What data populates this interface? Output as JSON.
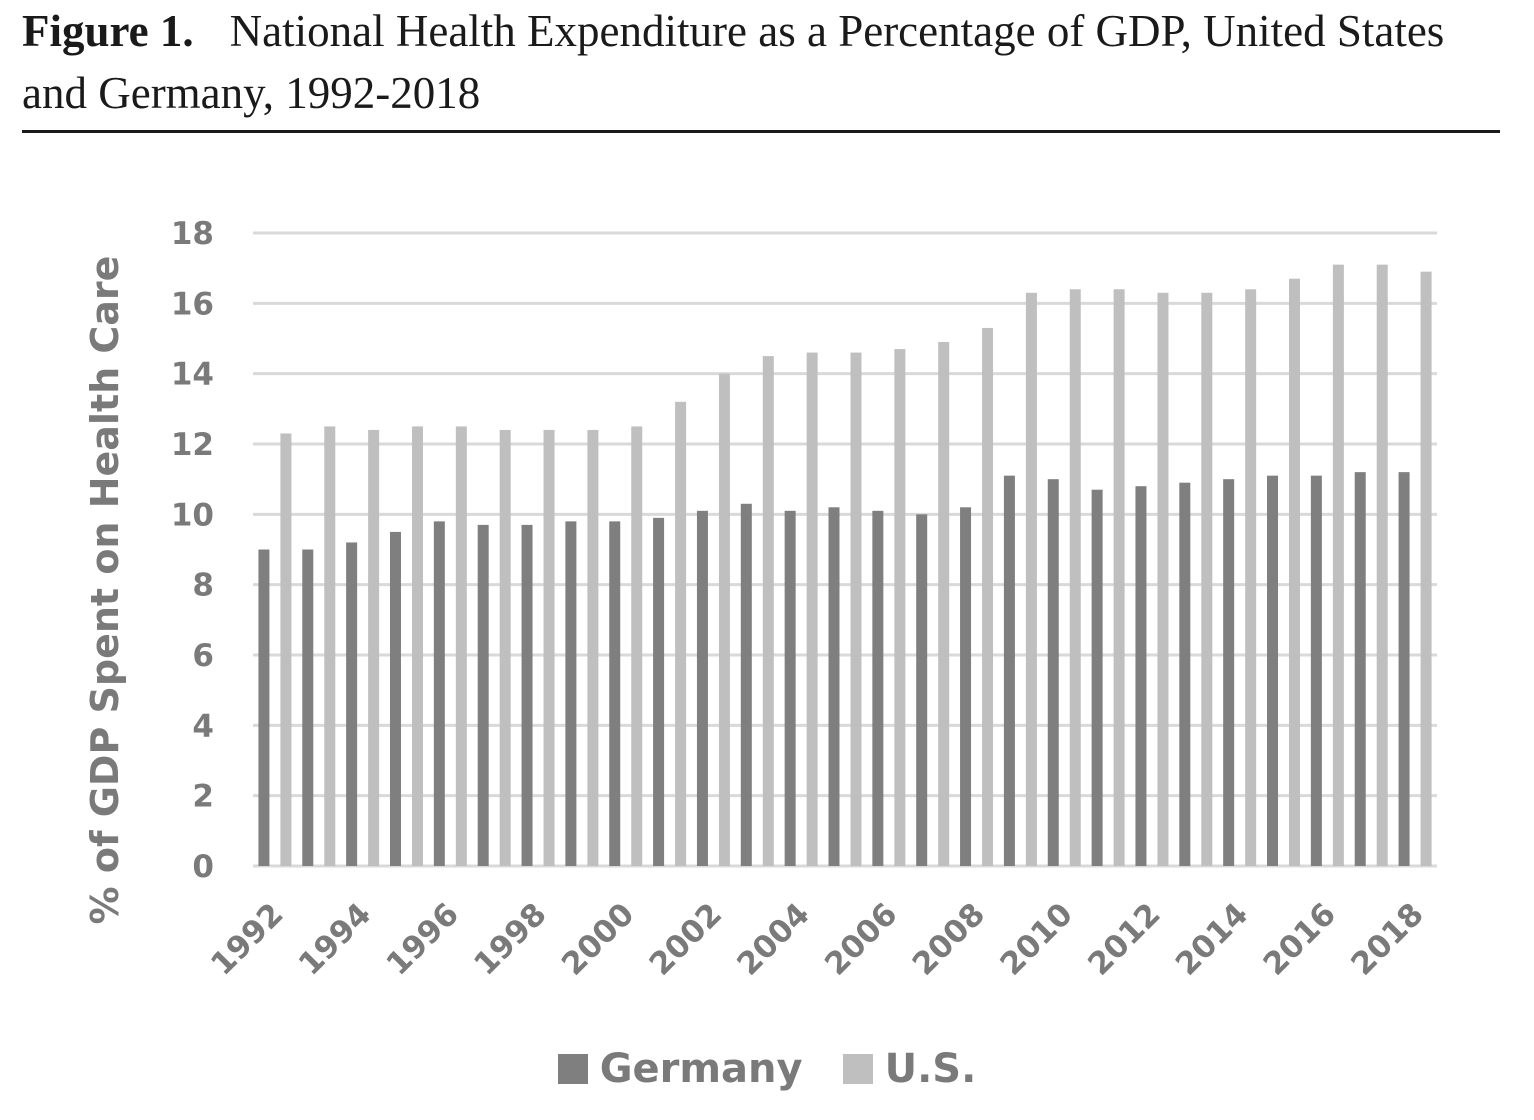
{
  "figure": {
    "label": "Figure 1.",
    "title": "National Health Expenditure as a Percentage of GDP, United States and Germany, 1992-2018"
  },
  "chart_data": {
    "type": "bar",
    "title": "National Health Expenditure as a Percentage of GDP, United States and Germany, 1992-2018",
    "xlabel": "",
    "ylabel": "% of GDP Spent on Health Care",
    "ylim": [
      0,
      18
    ],
    "yticks": [
      0,
      2,
      4,
      6,
      8,
      10,
      12,
      14,
      16,
      18
    ],
    "grid": true,
    "legend_position": "bottom",
    "categories": [
      "1992",
      "1993",
      "1994",
      "1995",
      "1996",
      "1997",
      "1998",
      "1999",
      "2000",
      "2001",
      "2002",
      "2003",
      "2004",
      "2005",
      "2006",
      "2007",
      "2008",
      "2009",
      "2010",
      "2011",
      "2012",
      "2013",
      "2014",
      "2015",
      "2016",
      "2017",
      "2018"
    ],
    "x_tick_labels": [
      "1992",
      "1994",
      "1996",
      "1998",
      "2000",
      "2002",
      "2004",
      "2006",
      "2008",
      "2010",
      "2012",
      "2014",
      "2016",
      "2018"
    ],
    "series": [
      {
        "name": "Germany",
        "color": "#7f7f7f",
        "values": [
          9.0,
          9.0,
          9.2,
          9.5,
          9.8,
          9.7,
          9.7,
          9.8,
          9.8,
          9.9,
          10.1,
          10.3,
          10.1,
          10.2,
          10.1,
          10.0,
          10.2,
          11.1,
          11.0,
          10.7,
          10.8,
          10.9,
          11.0,
          11.1,
          11.1,
          11.2,
          11.2
        ]
      },
      {
        "name": "U.S.",
        "color": "#bfbfbf",
        "values": [
          12.3,
          12.5,
          12.4,
          12.5,
          12.5,
          12.4,
          12.4,
          12.4,
          12.5,
          13.2,
          14.0,
          14.5,
          14.6,
          14.6,
          14.7,
          14.9,
          15.3,
          16.3,
          16.4,
          16.4,
          16.3,
          16.3,
          16.4,
          16.7,
          17.1,
          17.1,
          16.9
        ]
      }
    ]
  }
}
